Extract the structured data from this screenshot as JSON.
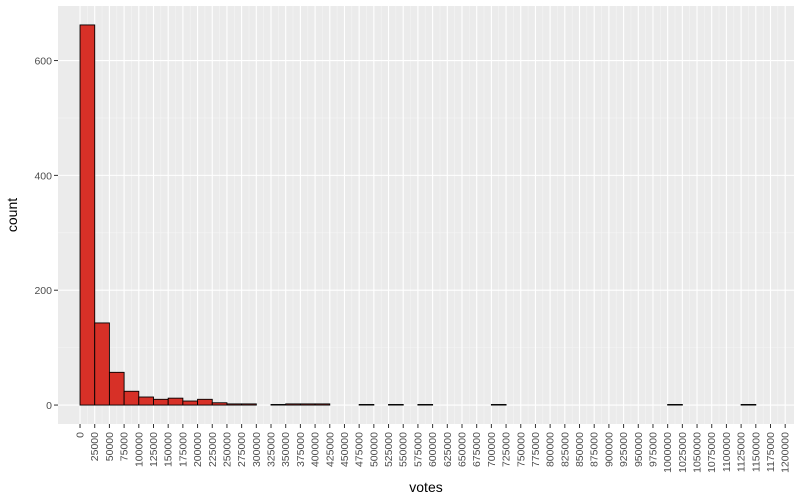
{
  "chart_data": {
    "type": "bar",
    "subtype": "histogram",
    "xlabel": "votes",
    "ylabel": "count",
    "bin_width": 25000,
    "bins_start": [
      0,
      25000,
      50000,
      75000,
      100000,
      125000,
      150000,
      175000,
      200000,
      225000,
      250000,
      275000,
      300000,
      325000,
      350000,
      375000,
      400000,
      425000,
      450000,
      475000,
      500000,
      525000,
      550000,
      575000,
      600000,
      625000,
      650000,
      675000,
      700000,
      725000,
      750000,
      775000,
      800000,
      825000,
      850000,
      875000,
      900000,
      925000,
      950000,
      975000,
      1000000,
      1025000,
      1050000,
      1075000,
      1100000,
      1125000
    ],
    "values": [
      662,
      143,
      57,
      24,
      14,
      10,
      12,
      7,
      10,
      4,
      2,
      2,
      0,
      1,
      2,
      2,
      2,
      0,
      0,
      1,
      0,
      1,
      0,
      1,
      0,
      0,
      0,
      0,
      1,
      0,
      0,
      0,
      0,
      0,
      0,
      0,
      0,
      0,
      0,
      0,
      1,
      0,
      0,
      0,
      0,
      1
    ],
    "x_ticks": [
      0,
      25000,
      50000,
      75000,
      100000,
      125000,
      150000,
      175000,
      200000,
      225000,
      250000,
      275000,
      300000,
      325000,
      350000,
      375000,
      400000,
      425000,
      450000,
      475000,
      500000,
      525000,
      550000,
      575000,
      600000,
      625000,
      650000,
      675000,
      700000,
      725000,
      750000,
      775000,
      800000,
      825000,
      850000,
      875000,
      900000,
      925000,
      950000,
      975000,
      1000000,
      1025000,
      1050000,
      1075000,
      1100000,
      1125000,
      1150000,
      1175000,
      1200000
    ],
    "y_ticks": [
      0,
      200,
      400,
      600
    ],
    "xlim": [
      -37500,
      1215000
    ],
    "ylim": [
      -33,
      695
    ],
    "grid": true,
    "colors": {
      "fill": "#d73027",
      "outline": "#000000",
      "panel_bg": "#ebebeb",
      "grid_major": "#ffffff",
      "grid_minor": "#f5f5f5",
      "tick_text": "#4d4d4d"
    }
  }
}
